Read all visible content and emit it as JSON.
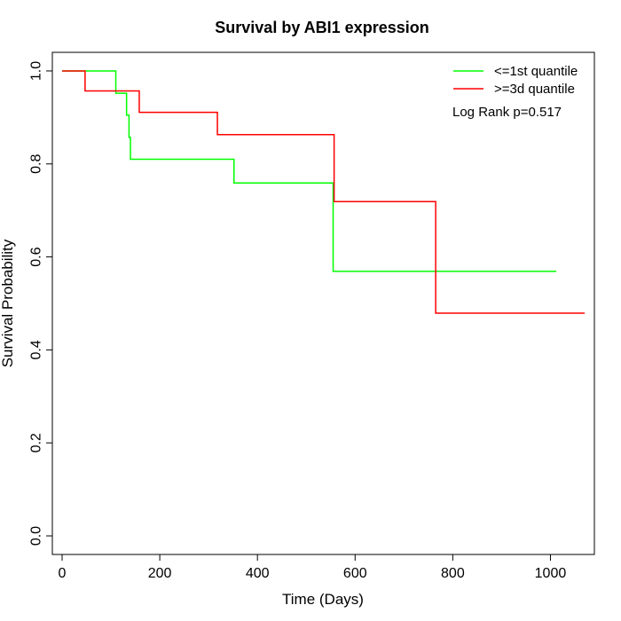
{
  "chart_data": {
    "type": "line",
    "title": "Survival by ABI1 expression",
    "xlabel": "Time (Days)",
    "ylabel": "Survival Probability",
    "xlim": [
      -20,
      1090
    ],
    "ylim": [
      -0.04,
      1.04
    ],
    "xticks": [
      0,
      200,
      400,
      600,
      800,
      1000
    ],
    "yticks": [
      0.0,
      0.2,
      0.4,
      0.6,
      0.8,
      1.0
    ],
    "xtick_labels": [
      "0",
      "200",
      "400",
      "600",
      "800",
      "1000"
    ],
    "ytick_labels": [
      "0.0",
      "0.2",
      "0.4",
      "0.6",
      "0.8",
      "1.0"
    ],
    "grid": false,
    "legend_position": "top-right",
    "annotation": "Log Rank p=0.517",
    "series": [
      {
        "name": "<=1st quantile",
        "color": "#00ff00",
        "step": true,
        "x": [
          0,
          110,
          132,
          137,
          140,
          143,
          352,
          555,
          1012
        ],
        "y": [
          1.0,
          0.952,
          0.905,
          0.857,
          0.81,
          0.81,
          0.759,
          0.569,
          0.569
        ]
      },
      {
        "name": ">=3d quantile",
        "color": "#ff0000",
        "step": true,
        "x": [
          0,
          47,
          158,
          318,
          557,
          765,
          1070
        ],
        "y": [
          1.0,
          0.957,
          0.911,
          0.863,
          0.719,
          0.479,
          0.479
        ]
      }
    ]
  }
}
